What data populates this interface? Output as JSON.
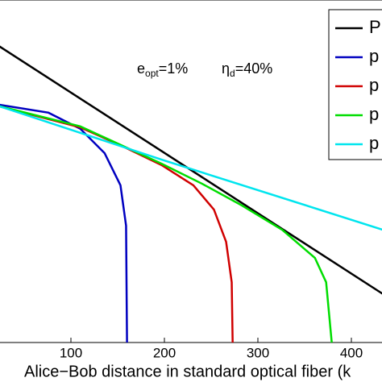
{
  "chart_data": {
    "type": "line",
    "xlabel": "Alice−Bob distance in standard optical fiber (k",
    "annotations": [
      {
        "base": "e",
        "sub": "opt",
        "rest": "=1%"
      },
      {
        "base": "η",
        "sub": "d",
        "rest": "=40%"
      }
    ],
    "xlim": [
      0,
      450
    ],
    "ylim": [
      0,
      1
    ],
    "xticks": [
      100,
      200,
      300,
      400
    ],
    "series": [
      {
        "name": "P",
        "color": "#000000",
        "x": [
          0,
          450
        ],
        "values": [
          0.906,
          0.113
        ]
      },
      {
        "name": "p",
        "color": "#0000c0",
        "x": [
          0,
          24,
          76,
          110,
          136,
          153,
          159,
          160
        ],
        "values": [
          0.706,
          0.694,
          0.671,
          0.624,
          0.553,
          0.459,
          0.341,
          0
        ]
      },
      {
        "name": "p",
        "color": "#d00000",
        "x": [
          0,
          110,
          153,
          197,
          231,
          253,
          266,
          272,
          273
        ],
        "values": [
          0.706,
          0.628,
          0.576,
          0.518,
          0.459,
          0.388,
          0.294,
          0.176,
          0
        ]
      },
      {
        "name": "p",
        "color": "#00dd00",
        "x": [
          0,
          110,
          197,
          240,
          283,
          326,
          361,
          373,
          379
        ],
        "values": [
          0.706,
          0.631,
          0.522,
          0.464,
          0.4,
          0.329,
          0.247,
          0.176,
          0
        ]
      },
      {
        "name": "p",
        "color": "#00e5ee",
        "x": [
          0,
          197,
          450
        ],
        "values": [
          0.711,
          0.534,
          0.315
        ]
      }
    ]
  }
}
